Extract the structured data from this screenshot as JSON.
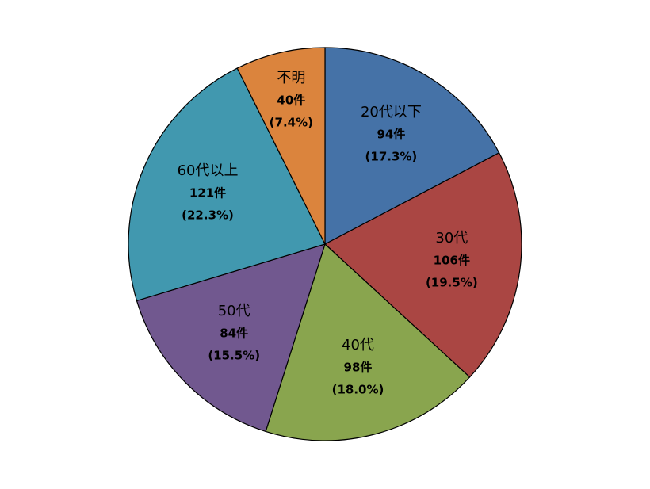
{
  "chart_data": {
    "type": "pie",
    "categories": [
      "20代以下",
      "30代",
      "40代",
      "50代",
      "60代以上",
      "不明"
    ],
    "values": [
      94,
      106,
      98,
      84,
      121,
      40
    ],
    "value_labels": [
      "94件",
      "106件",
      "98件",
      "84件",
      "121件",
      "40件"
    ],
    "percentages": [
      17.3,
      19.5,
      18.0,
      15.5,
      22.3,
      7.4
    ],
    "percentage_labels": [
      "(17.3%)",
      "(19.5%)",
      "(18.0%)",
      "(15.5%)",
      "(22.3%)",
      "(7.4%)"
    ],
    "colors": [
      "#4572a7",
      "#aa4643",
      "#89a54e",
      "#71588f",
      "#4198af",
      "#db843d"
    ]
  }
}
